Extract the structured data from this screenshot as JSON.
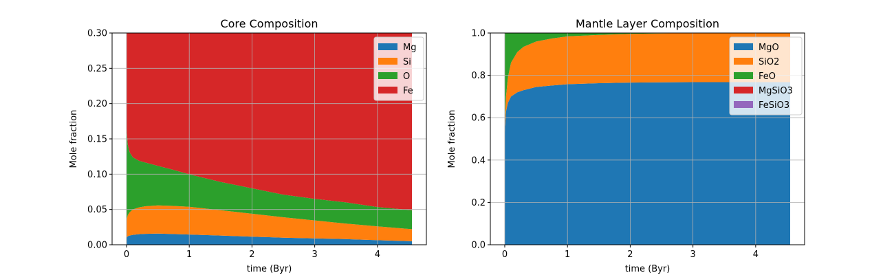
{
  "chart_data": [
    {
      "type": "area",
      "title": "Core Composition",
      "xlabel": "time (Byr)",
      "ylabel": "Mole fraction",
      "xlim": [
        -0.23,
        4.78
      ],
      "ylim": [
        0,
        0.3
      ],
      "xticks": [
        0,
        1,
        2,
        3,
        4
      ],
      "xtick_labels": [
        "0",
        "1",
        "2",
        "3",
        "4"
      ],
      "yticks": [
        0,
        0.05,
        0.1,
        0.15,
        0.2,
        0.25,
        0.3
      ],
      "ytick_labels": [
        "0.00",
        "0.05",
        "0.10",
        "0.15",
        "0.20",
        "0.25",
        "0.30"
      ],
      "grid": true,
      "legend_position": "top-right",
      "x": [
        0,
        0.02,
        0.05,
        0.1,
        0.2,
        0.3,
        0.5,
        0.75,
        1,
        1.5,
        2,
        2.5,
        3,
        3.5,
        4,
        4.55
      ],
      "series": [
        {
          "name": "Mg",
          "color": "#1f77b4",
          "values": [
            0.01,
            0.012,
            0.013,
            0.014,
            0.015,
            0.0155,
            0.0158,
            0.0152,
            0.0145,
            0.013,
            0.0115,
            0.01,
            0.009,
            0.008,
            0.0065,
            0.005
          ]
        },
        {
          "name": "Si",
          "color": "#ff7f0e",
          "values": [
            0.025,
            0.03,
            0.033,
            0.036,
            0.038,
            0.039,
            0.04,
            0.0398,
            0.0393,
            0.036,
            0.0325,
            0.029,
            0.0255,
            0.022,
            0.0195,
            0.017
          ]
        },
        {
          "name": "O",
          "color": "#2ca02c",
          "values": [
            0.13,
            0.1,
            0.085,
            0.074,
            0.066,
            0.062,
            0.056,
            0.051,
            0.046,
            0.04,
            0.036,
            0.032,
            0.0305,
            0.03,
            0.0275,
            0.027
          ]
        },
        {
          "name": "Fe",
          "color": "#d62728",
          "values": [
            0.835,
            0.858,
            0.869,
            0.876,
            0.881,
            0.8835,
            0.8882,
            0.894,
            0.9002,
            0.911,
            0.92,
            0.929,
            0.935,
            0.94,
            0.9465,
            0.951
          ]
        }
      ]
    },
    {
      "type": "area",
      "title": "Mantle Layer Composition",
      "xlabel": "time (Byr)",
      "ylabel": "Mole fraction",
      "xlim": [
        -0.23,
        4.78
      ],
      "ylim": [
        0,
        1.0
      ],
      "xticks": [
        0,
        1,
        2,
        3,
        4
      ],
      "xtick_labels": [
        "0",
        "1",
        "2",
        "3",
        "4"
      ],
      "yticks": [
        0,
        0.2,
        0.4,
        0.6,
        0.8,
        1.0
      ],
      "ytick_labels": [
        "0.0",
        "0.2",
        "0.4",
        "0.6",
        "0.8",
        "1.0"
      ],
      "grid": true,
      "legend_position": "top-right",
      "x": [
        0,
        0.02,
        0.05,
        0.1,
        0.2,
        0.3,
        0.5,
        0.75,
        1,
        1.5,
        2,
        2.5,
        3,
        3.5,
        4,
        4.55
      ],
      "series": [
        {
          "name": "MgO",
          "color": "#1f77b4",
          "values": [
            0.53,
            0.63,
            0.67,
            0.7,
            0.72,
            0.73,
            0.745,
            0.752,
            0.758,
            0.763,
            0.766,
            0.767,
            0.768,
            0.768,
            0.768,
            0.768
          ]
        },
        {
          "name": "SiO2",
          "color": "#ff7f0e",
          "values": [
            0.04,
            0.07,
            0.12,
            0.16,
            0.19,
            0.205,
            0.215,
            0.222,
            0.226,
            0.228,
            0.23,
            0.231,
            0.231,
            0.231,
            0.231,
            0.232
          ]
        },
        {
          "name": "FeO",
          "color": "#2ca02c",
          "values": [
            0.43,
            0.3,
            0.21,
            0.14,
            0.09,
            0.065,
            0.04,
            0.026,
            0.016,
            0.009,
            0.004,
            0.002,
            0.001,
            0.001,
            0.001,
            0.0
          ]
        },
        {
          "name": "MgSiO3",
          "color": "#d62728",
          "values": [
            0,
            0,
            0,
            0,
            0,
            0,
            0,
            0,
            0,
            0,
            0,
            0,
            0,
            0,
            0,
            0
          ]
        },
        {
          "name": "FeSiO3",
          "color": "#9467bd",
          "values": [
            0,
            0,
            0,
            0,
            0,
            0,
            0,
            0,
            0,
            0,
            0,
            0,
            0,
            0,
            0,
            0
          ]
        }
      ]
    }
  ]
}
